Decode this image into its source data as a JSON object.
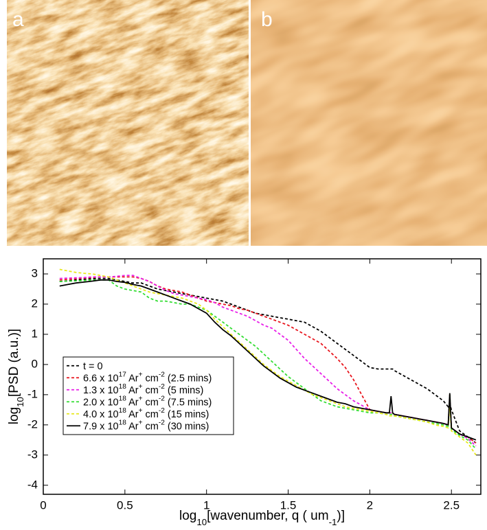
{
  "panels": [
    {
      "label": "a"
    },
    {
      "label": "b"
    }
  ],
  "chart_data": {
    "type": "line",
    "xlabel": [
      "log",
      "10",
      "[wavenumber, q ( um",
      "-1",
      ")]"
    ],
    "ylabel": [
      "log",
      "10",
      "[PSD (a.u.)]"
    ],
    "xlim": [
      0,
      2.68
    ],
    "ylim": [
      -4.3,
      3.5
    ],
    "xticks": [
      0,
      0.5,
      1,
      1.5,
      2,
      2.5
    ],
    "yticks": [
      3,
      2,
      1,
      0,
      -1,
      -2,
      -3,
      -4
    ],
    "legend": "lower left",
    "x": [
      0.1,
      0.15,
      0.2,
      0.25,
      0.3,
      0.35,
      0.4,
      0.45,
      0.5,
      0.55,
      0.6,
      0.65,
      0.7,
      0.75,
      0.8,
      0.85,
      0.9,
      0.95,
      1.0,
      1.05,
      1.1,
      1.15,
      1.2,
      1.25,
      1.3,
      1.35,
      1.4,
      1.45,
      1.5,
      1.55,
      1.6,
      1.65,
      1.7,
      1.75,
      1.8,
      1.85,
      1.9,
      1.95,
      2.0,
      2.05,
      2.1,
      2.12,
      2.13,
      2.14,
      2.15,
      2.2,
      2.25,
      2.3,
      2.35,
      2.4,
      2.45,
      2.48,
      2.49,
      2.5,
      2.55,
      2.6,
      2.65
    ],
    "series": [
      {
        "name": [
          "t = 0"
        ],
        "color": "#000000",
        "dash": true,
        "values": [
          2.75,
          2.77,
          2.8,
          2.82,
          2.84,
          2.85,
          2.85,
          2.8,
          2.75,
          2.7,
          2.7,
          2.6,
          2.5,
          2.45,
          2.4,
          2.35,
          2.3,
          2.25,
          2.2,
          2.15,
          2.1,
          2.0,
          1.9,
          1.8,
          1.7,
          1.65,
          1.6,
          1.55,
          1.5,
          1.45,
          1.4,
          1.25,
          1.1,
          0.9,
          0.7,
          0.5,
          0.3,
          0.1,
          -0.1,
          -0.15,
          -0.15,
          -0.15,
          -0.15,
          -0.15,
          -0.2,
          -0.35,
          -0.5,
          -0.65,
          -0.8,
          -1.0,
          -1.2,
          -1.4,
          -1.3,
          -1.5,
          -2.2,
          -2.4,
          -2.6
        ]
      },
      {
        "name": [
          "6.6 x 10",
          "17",
          " Ar",
          "+",
          " cm",
          "-2",
          " (2.5 mins)"
        ],
        "color": "#e8141c",
        "dash": true,
        "values": [
          2.8,
          2.82,
          2.84,
          2.86,
          2.88,
          2.9,
          2.9,
          2.9,
          2.9,
          2.9,
          2.85,
          2.75,
          2.6,
          2.5,
          2.45,
          2.4,
          2.3,
          2.2,
          2.1,
          2.05,
          2.0,
          1.95,
          1.85,
          1.8,
          1.7,
          1.6,
          1.5,
          1.4,
          1.3,
          1.15,
          1.0,
          0.85,
          0.7,
          0.45,
          0.2,
          -0.1,
          -0.5,
          -1.0,
          -1.5,
          -1.55,
          -1.6,
          -1.6,
          -1.6,
          -1.6,
          -1.65,
          -1.7,
          -1.75,
          -1.8,
          -1.85,
          -1.9,
          -1.95,
          -2.0,
          -1.0,
          -2.1,
          -2.3,
          -2.4,
          -2.6
        ]
      },
      {
        "name": [
          "1.3 x 10",
          "18",
          " Ar",
          "+",
          " cm",
          "-2",
          " (5 mins)"
        ],
        "color": "#e81ee8",
        "dash": true,
        "values": [
          2.85,
          2.86,
          2.87,
          2.88,
          2.9,
          2.9,
          2.9,
          2.92,
          2.95,
          2.95,
          2.85,
          2.75,
          2.6,
          2.45,
          2.35,
          2.3,
          2.25,
          2.2,
          2.15,
          2.05,
          1.9,
          1.8,
          1.7,
          1.6,
          1.45,
          1.3,
          1.2,
          1.0,
          0.8,
          0.5,
          0.2,
          -0.05,
          -0.3,
          -0.55,
          -0.8,
          -1.0,
          -1.2,
          -1.35,
          -1.5,
          -1.55,
          -1.6,
          -1.6,
          -1.6,
          -1.6,
          -1.65,
          -1.7,
          -1.75,
          -1.8,
          -1.85,
          -1.9,
          -1.95,
          -2.0,
          -1.1,
          -2.1,
          -2.3,
          -2.45,
          -2.7
        ]
      },
      {
        "name": [
          "2.0 x 10",
          "18",
          " Ar",
          "+",
          " cm",
          "-2",
          " (7.5 mins)"
        ],
        "color": "#33dd33",
        "dash": true,
        "values": [
          2.75,
          2.76,
          2.77,
          2.78,
          2.8,
          2.8,
          2.8,
          2.6,
          2.5,
          2.45,
          2.4,
          2.2,
          2.1,
          2.1,
          2.05,
          2.0,
          2.0,
          1.9,
          1.8,
          1.6,
          1.4,
          1.2,
          1.0,
          0.8,
          0.6,
          0.35,
          0.1,
          -0.15,
          -0.4,
          -0.6,
          -0.8,
          -1.0,
          -1.2,
          -1.3,
          -1.4,
          -1.45,
          -1.5,
          -1.55,
          -1.6,
          -1.6,
          -1.65,
          -1.65,
          -1.65,
          -1.65,
          -1.7,
          -1.75,
          -1.8,
          -1.85,
          -1.9,
          -1.95,
          -2.0,
          -2.05,
          -1.0,
          -2.15,
          -2.35,
          -2.5,
          -2.8
        ]
      },
      {
        "name": [
          "4.0 x 10",
          "18",
          " Ar",
          "+",
          " cm",
          "-2",
          " (15 mins)"
        ],
        "color": "#e8e81a",
        "dash": true,
        "values": [
          3.15,
          3.1,
          3.05,
          3.02,
          3.0,
          2.95,
          2.9,
          2.8,
          2.7,
          2.6,
          2.5,
          2.4,
          2.35,
          2.3,
          2.25,
          2.2,
          2.1,
          2.0,
          1.8,
          1.5,
          1.25,
          1.0,
          0.75,
          0.5,
          0.25,
          0.0,
          -0.2,
          -0.4,
          -0.55,
          -0.7,
          -0.85,
          -1.0,
          -1.1,
          -1.2,
          -1.3,
          -1.4,
          -1.45,
          -1.5,
          -1.55,
          -1.6,
          -1.65,
          -1.7,
          -1.7,
          -1.7,
          -1.7,
          -1.75,
          -1.8,
          -1.85,
          -1.9,
          -2.0,
          -2.05,
          -2.1,
          -1.3,
          -2.2,
          -2.4,
          -2.6,
          -3.0
        ]
      },
      {
        "name": [
          "7.9 x 10",
          "18",
          " Ar",
          "+",
          " cm",
          "-2",
          " (30 mins)"
        ],
        "color": "#000000",
        "dash": false,
        "values": [
          2.6,
          2.65,
          2.7,
          2.73,
          2.76,
          2.8,
          2.8,
          2.75,
          2.72,
          2.65,
          2.6,
          2.5,
          2.4,
          2.3,
          2.2,
          2.1,
          2.0,
          1.85,
          1.7,
          1.4,
          1.15,
          0.95,
          0.7,
          0.45,
          0.2,
          -0.05,
          -0.25,
          -0.45,
          -0.6,
          -0.75,
          -0.85,
          -0.95,
          -1.05,
          -1.15,
          -1.25,
          -1.3,
          -1.4,
          -1.45,
          -1.5,
          -1.55,
          -1.6,
          -1.6,
          -1.05,
          -1.6,
          -1.65,
          -1.7,
          -1.75,
          -1.8,
          -1.85,
          -1.9,
          -1.95,
          -2.0,
          -0.95,
          -2.1,
          -2.3,
          -2.4,
          -2.5
        ]
      }
    ]
  }
}
